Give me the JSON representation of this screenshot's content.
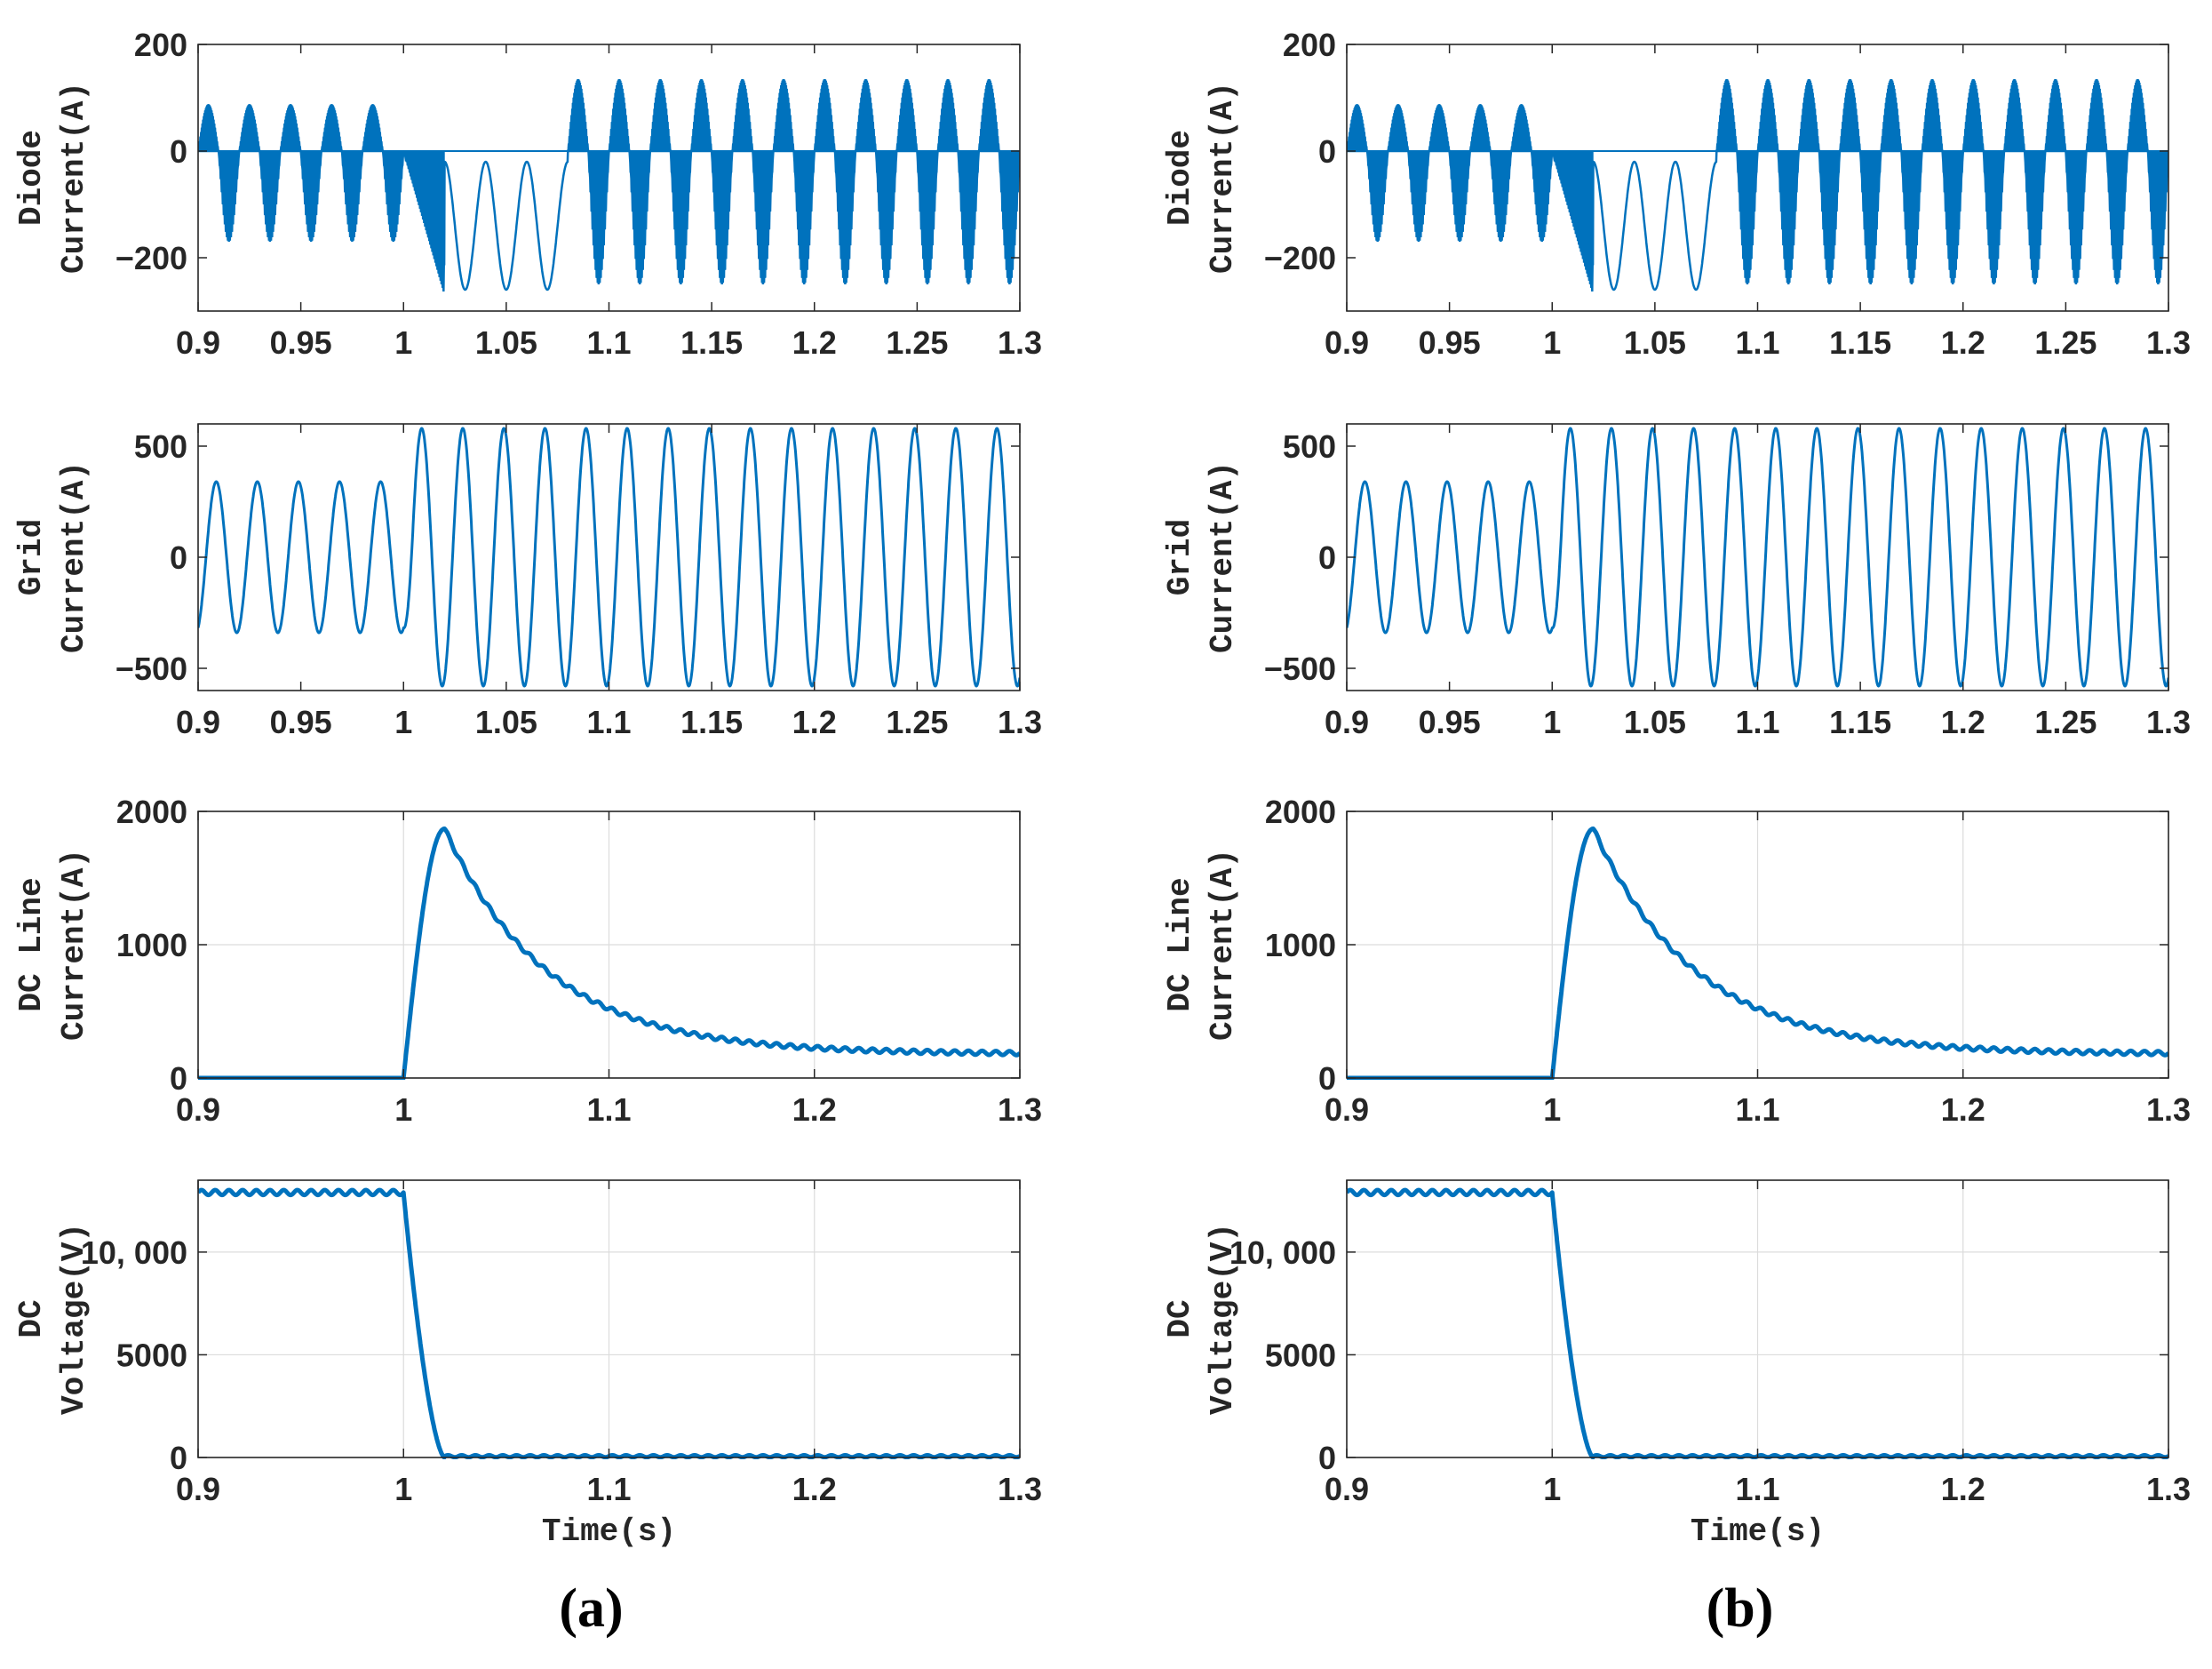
{
  "colors": {
    "series": "#0072BD",
    "axis": "#262626",
    "grid": "#dcdcdc"
  },
  "captions": [
    "(a)",
    "(b)"
  ],
  "xlabel": "Time(s)",
  "panels": [
    {
      "key": "diode",
      "ylabel_lines": [
        "Diode",
        "Current(A)"
      ],
      "ylim": [
        -300,
        200
      ],
      "yticks": [
        -200,
        0,
        200
      ],
      "ytick_labels": [
        "−200",
        "0",
        "200"
      ],
      "xticks": [
        0.9,
        0.95,
        1,
        1.05,
        1.1,
        1.15,
        1.2,
        1.25,
        1.3
      ],
      "xtick_labels": [
        "0.9",
        "0.95",
        "1",
        "1.05",
        "1.1",
        "1.15",
        "1.2",
        "1.25",
        "1.3"
      ],
      "grid": false
    },
    {
      "key": "grid",
      "ylabel_lines": [
        "Grid",
        "Current(A)"
      ],
      "ylim": [
        -600,
        600
      ],
      "yticks": [
        -500,
        0,
        500
      ],
      "ytick_labels": [
        "−500",
        "0",
        "500"
      ],
      "xticks": [
        0.9,
        0.95,
        1,
        1.05,
        1.1,
        1.15,
        1.2,
        1.25,
        1.3
      ],
      "xtick_labels": [
        "0.9",
        "0.95",
        "1",
        "1.05",
        "1.1",
        "1.15",
        "1.2",
        "1.25",
        "1.3"
      ],
      "grid": false
    },
    {
      "key": "dcline",
      "ylabel_lines": [
        "DC Line",
        "Current(A)"
      ],
      "ylim": [
        0,
        2000
      ],
      "yticks": [
        0,
        1000,
        2000
      ],
      "ytick_labels": [
        "0",
        "1000",
        "2000"
      ],
      "xticks": [
        0.9,
        1,
        1.1,
        1.2,
        1.3
      ],
      "xtick_labels": [
        "0.9",
        "1",
        "1.1",
        "1.2",
        "1.3"
      ],
      "grid": true
    },
    {
      "key": "dcvolt",
      "ylabel_lines": [
        "DC",
        "Voltage(V)"
      ],
      "ylim": [
        0,
        13500
      ],
      "yticks": [
        0,
        5000,
        10000
      ],
      "ytick_labels": [
        "0",
        "5000",
        "10, 000"
      ],
      "xticks": [
        0.9,
        1,
        1.1,
        1.2,
        1.3
      ],
      "xtick_labels": [
        "0.9",
        "1",
        "1.1",
        "1.2",
        "1.3"
      ],
      "grid": true
    }
  ],
  "chart_data": [
    {
      "type": "line",
      "figure": "(a)",
      "title": "",
      "xlabel": "Time(s)",
      "xlim": [
        0.9,
        1.3
      ],
      "subplots": [
        {
          "ylabel": "Diode Current(A)",
          "ylim": [
            -300,
            200
          ],
          "series": [
            {
              "name": "Diode current",
              "fault_time": 1.0,
              "pre_fault_peak_pos": 85,
              "pre_fault_peak_neg": -170,
              "fault_peak_neg": -270,
              "post_fault_peak_pos": 130,
              "post_fault_peak_neg": -250,
              "freq_hz": 50
            }
          ]
        },
        {
          "ylabel": "Grid Current(A)",
          "ylim": [
            -600,
            600
          ],
          "series": [
            {
              "name": "Grid current",
              "pre_fault_amplitude": 340,
              "post_fault_amplitude": 580,
              "fault_time": 1.0,
              "freq_hz": 50
            }
          ]
        },
        {
          "ylabel": "DC Line Current(A)",
          "ylim": [
            0,
            2000
          ],
          "series": [
            {
              "name": "DC line current",
              "x": [
                0.9,
                1.0,
                1.005,
                1.01,
                1.015,
                1.02,
                1.03,
                1.05,
                1.08,
                1.1,
                1.12,
                1.15,
                1.2,
                1.25,
                1.3
              ],
              "y": [
                0,
                0,
                900,
                1550,
                1800,
                1870,
                1700,
                1300,
                850,
                620,
                450,
                300,
                200,
                190,
                190
              ]
            }
          ]
        },
        {
          "ylabel": "DC Voltage(V)",
          "ylim": [
            0,
            13500
          ],
          "series": [
            {
              "name": "DC voltage",
              "x": [
                0.9,
                0.95,
                1.0,
                1.005,
                1.01,
                1.015,
                1.02,
                1.1,
                1.2,
                1.3
              ],
              "y": [
                12900,
                12950,
                12900,
                10000,
                5000,
                2000,
                0,
                50,
                100,
                100
              ]
            }
          ]
        }
      ]
    },
    {
      "type": "line",
      "figure": "(b)",
      "title": "",
      "xlabel": "Time(s)",
      "xlim": [
        0.9,
        1.3
      ],
      "subplots": [
        {
          "ylabel": "Diode Current(A)",
          "ylim": [
            -300,
            200
          ],
          "series": [
            {
              "name": "Diode current",
              "fault_time": 1.0,
              "pre_fault_peak_pos": 85,
              "pre_fault_peak_neg": -170,
              "fault_peak_neg": -270,
              "post_fault_peak_pos": 130,
              "post_fault_peak_neg": -250,
              "freq_hz": 50
            }
          ]
        },
        {
          "ylabel": "Grid Current(A)",
          "ylim": [
            -600,
            600
          ],
          "series": [
            {
              "name": "Grid current",
              "pre_fault_amplitude": 340,
              "post_fault_amplitude": 580,
              "fault_time": 1.0,
              "freq_hz": 50
            }
          ]
        },
        {
          "ylabel": "DC Line Current(A)",
          "ylim": [
            0,
            2000
          ],
          "series": [
            {
              "name": "DC line current",
              "x": [
                0.9,
                1.0,
                1.005,
                1.01,
                1.015,
                1.02,
                1.03,
                1.05,
                1.08,
                1.1,
                1.12,
                1.15,
                1.2,
                1.25,
                1.3
              ],
              "y": [
                0,
                0,
                900,
                1550,
                1800,
                1870,
                1700,
                1300,
                850,
                620,
                450,
                300,
                200,
                190,
                190
              ]
            }
          ]
        },
        {
          "ylabel": "DC Voltage(V)",
          "ylim": [
            0,
            13500
          ],
          "series": [
            {
              "name": "DC voltage",
              "x": [
                0.9,
                0.95,
                1.0,
                1.005,
                1.01,
                1.015,
                1.02,
                1.1,
                1.2,
                1.3
              ],
              "y": [
                12900,
                12950,
                12900,
                10000,
                5000,
                2000,
                0,
                50,
                100,
                100
              ]
            }
          ]
        }
      ]
    }
  ]
}
